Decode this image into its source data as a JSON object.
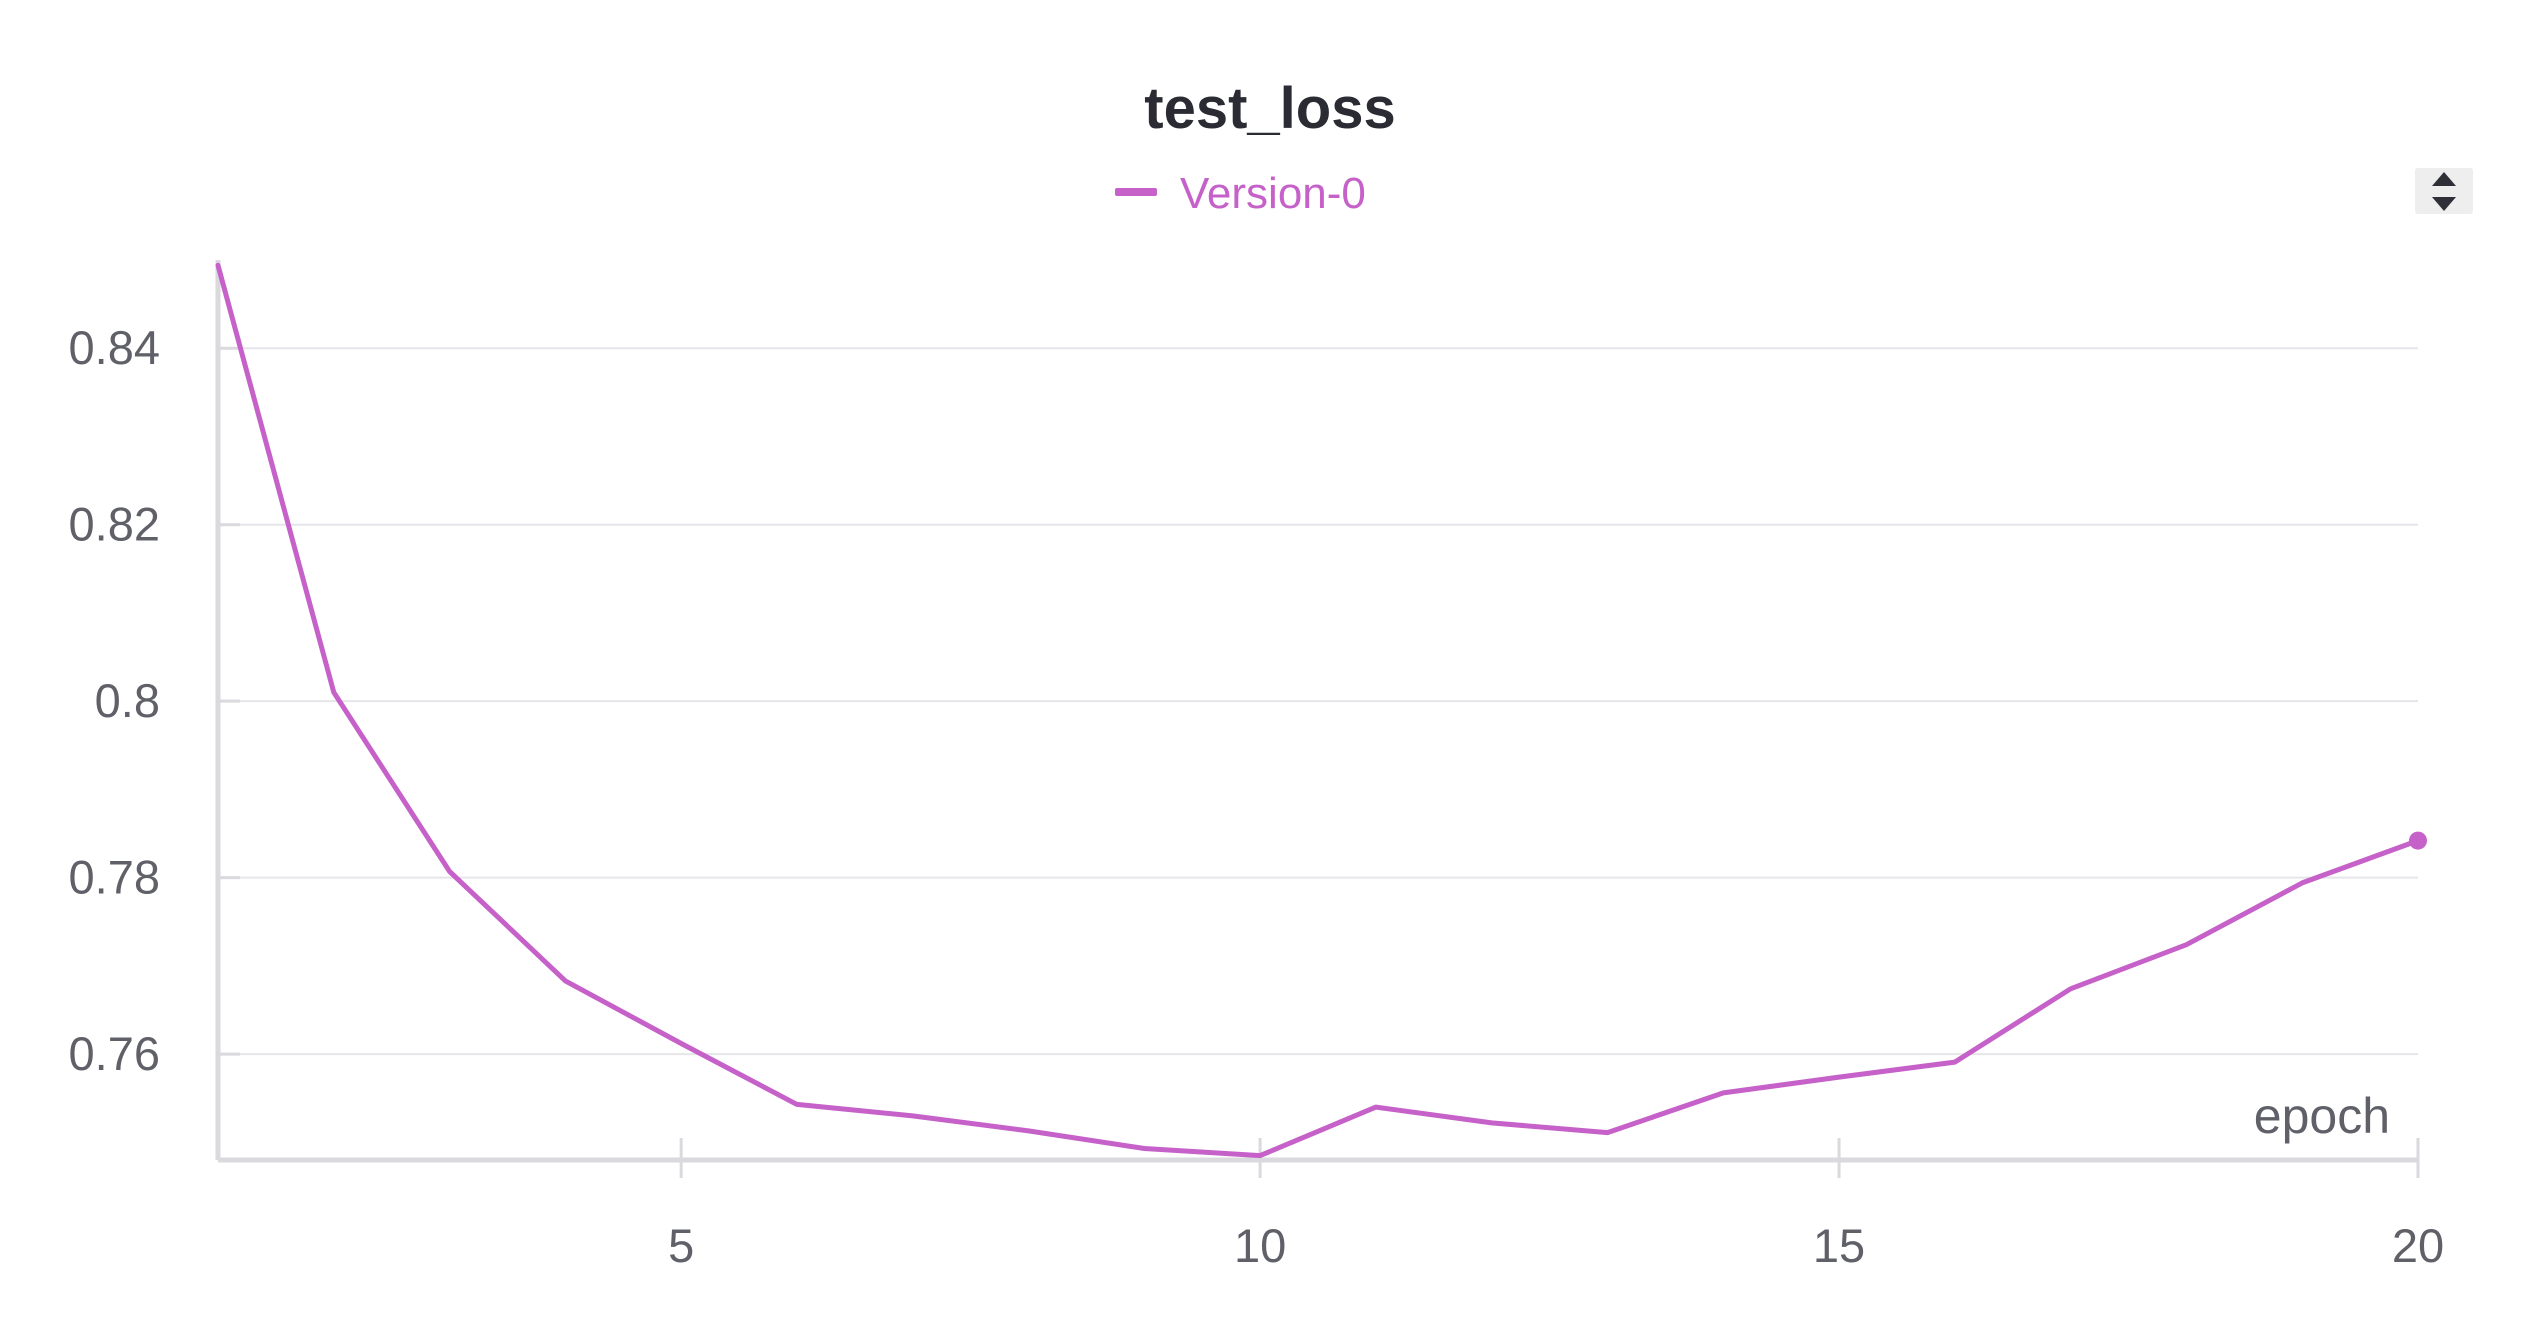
{
  "chart_data": {
    "type": "line",
    "title": "test_loss",
    "xlabel": "epoch",
    "ylabel": "",
    "x": [
      1,
      2,
      3,
      4,
      5,
      6,
      7,
      8,
      9,
      10,
      11,
      12,
      13,
      14,
      15,
      16,
      17,
      18,
      19,
      20
    ],
    "series": [
      {
        "name": "Version-0",
        "color": "#c561c8",
        "values": [
          0.8494,
          0.801,
          0.7807,
          0.7683,
          0.7612,
          0.7543,
          0.753,
          0.7513,
          0.7493,
          0.7485,
          0.754,
          0.7522,
          0.7511,
          0.7556,
          0.7574,
          0.7591,
          0.7674,
          0.7724,
          0.7794,
          0.7842
        ]
      }
    ],
    "xlim": [
      1,
      20
    ],
    "ylim": [
      0.748,
      0.85
    ],
    "x_ticks": [
      "5",
      "10",
      "15",
      "20"
    ],
    "x_tick_values": [
      5,
      10,
      15,
      20
    ],
    "y_ticks": [
      "0.76",
      "0.78",
      "0.8",
      "0.82",
      "0.84"
    ],
    "y_tick_values": [
      0.76,
      0.78,
      0.8,
      0.82,
      0.84
    ],
    "grid": true,
    "legend_position": "top-center",
    "end_marker": true
  },
  "controls": {
    "sort_icon": "sort-arrows-icon"
  },
  "colors": {
    "series": "#c561c8",
    "title": "#2b2c33",
    "ticks": "#5f6068",
    "grid": "#e6e6ea",
    "axis": "#d9d9de"
  }
}
